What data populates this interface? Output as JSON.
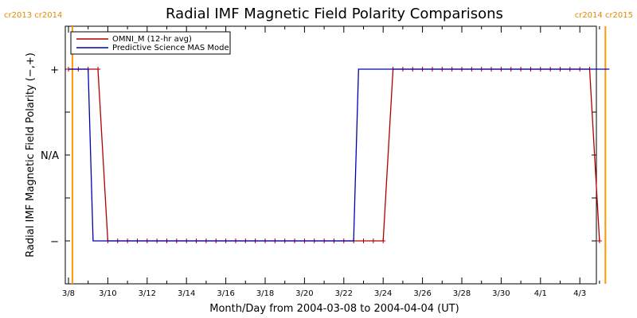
{
  "chart_data": {
    "type": "line",
    "title": "Radial IMF Magnetic Field Polarity Comparisons",
    "xlabel": "Month/Day from 2004-03-08 to 2004-04-04 (UT)",
    "ylabel": "Radial IMF Magnetic Field Polarity (−,+)",
    "x_range_days": [
      0,
      27.5
    ],
    "ylim": [
      -1.5,
      1.5
    ],
    "x_ticks": [
      {
        "day": 0,
        "label": "3/8"
      },
      {
        "day": 2,
        "label": "3/10"
      },
      {
        "day": 4,
        "label": "3/12"
      },
      {
        "day": 6,
        "label": "3/14"
      },
      {
        "day": 8,
        "label": "3/16"
      },
      {
        "day": 10,
        "label": "3/18"
      },
      {
        "day": 12,
        "label": "3/20"
      },
      {
        "day": 14,
        "label": "3/22"
      },
      {
        "day": 16,
        "label": "3/24"
      },
      {
        "day": 18,
        "label": "3/26"
      },
      {
        "day": 20,
        "label": "3/28"
      },
      {
        "day": 22,
        "label": "3/30"
      },
      {
        "day": 24,
        "label": "4/1"
      },
      {
        "day": 26,
        "label": "4/3"
      }
    ],
    "y_ticks": [
      {
        "value": 1,
        "label": "+"
      },
      {
        "value": 0,
        "label": "N/A"
      },
      {
        "value": -1,
        "label": "−"
      }
    ],
    "carrington_markers": [
      {
        "day": 0.2,
        "label": "cr2013 cr2014",
        "side": "left"
      },
      {
        "day": 27.3,
        "label": "cr2014 cr2015",
        "side": "right"
      }
    ],
    "legend_position": "top-left",
    "series": [
      {
        "name": "OMNI_M (12-hr avg)",
        "color": "#b00000",
        "markers": "plus",
        "points": [
          [
            0,
            1
          ],
          [
            0.5,
            1
          ],
          [
            1,
            1
          ],
          [
            1.5,
            1
          ],
          [
            2,
            -1
          ],
          [
            2.5,
            -1
          ],
          [
            3,
            -1
          ],
          [
            3.5,
            -1
          ],
          [
            4,
            -1
          ],
          [
            4.5,
            -1
          ],
          [
            5,
            -1
          ],
          [
            5.5,
            -1
          ],
          [
            6,
            -1
          ],
          [
            6.5,
            -1
          ],
          [
            7,
            -1
          ],
          [
            7.5,
            -1
          ],
          [
            8,
            -1
          ],
          [
            8.5,
            -1
          ],
          [
            9,
            -1
          ],
          [
            9.5,
            -1
          ],
          [
            10,
            -1
          ],
          [
            10.5,
            -1
          ],
          [
            11,
            -1
          ],
          [
            11.5,
            -1
          ],
          [
            12,
            -1
          ],
          [
            12.5,
            -1
          ],
          [
            13,
            -1
          ],
          [
            13.5,
            -1
          ],
          [
            14,
            -1
          ],
          [
            14.5,
            -1
          ],
          [
            15,
            -1
          ],
          [
            15.5,
            -1
          ],
          [
            16,
            -1
          ],
          [
            16.5,
            1
          ],
          [
            17,
            1
          ],
          [
            17.5,
            1
          ],
          [
            18,
            1
          ],
          [
            18.5,
            1
          ],
          [
            19,
            1
          ],
          [
            19.5,
            1
          ],
          [
            20,
            1
          ],
          [
            20.5,
            1
          ],
          [
            21,
            1
          ],
          [
            21.5,
            1
          ],
          [
            22,
            1
          ],
          [
            22.5,
            1
          ],
          [
            23,
            1
          ],
          [
            23.5,
            1
          ],
          [
            24,
            1
          ],
          [
            24.5,
            1
          ],
          [
            25,
            1
          ],
          [
            25.5,
            1
          ],
          [
            26,
            1
          ],
          [
            26.5,
            1
          ],
          [
            27,
            -1
          ]
        ]
      },
      {
        "name": "Predictive Science MAS Model",
        "color": "#0000b0",
        "markers": "none",
        "points": [
          [
            0,
            1
          ],
          [
            1,
            1
          ],
          [
            1.25,
            -1
          ],
          [
            14.5,
            -1
          ],
          [
            14.75,
            1
          ],
          [
            27.5,
            1
          ]
        ]
      }
    ]
  }
}
